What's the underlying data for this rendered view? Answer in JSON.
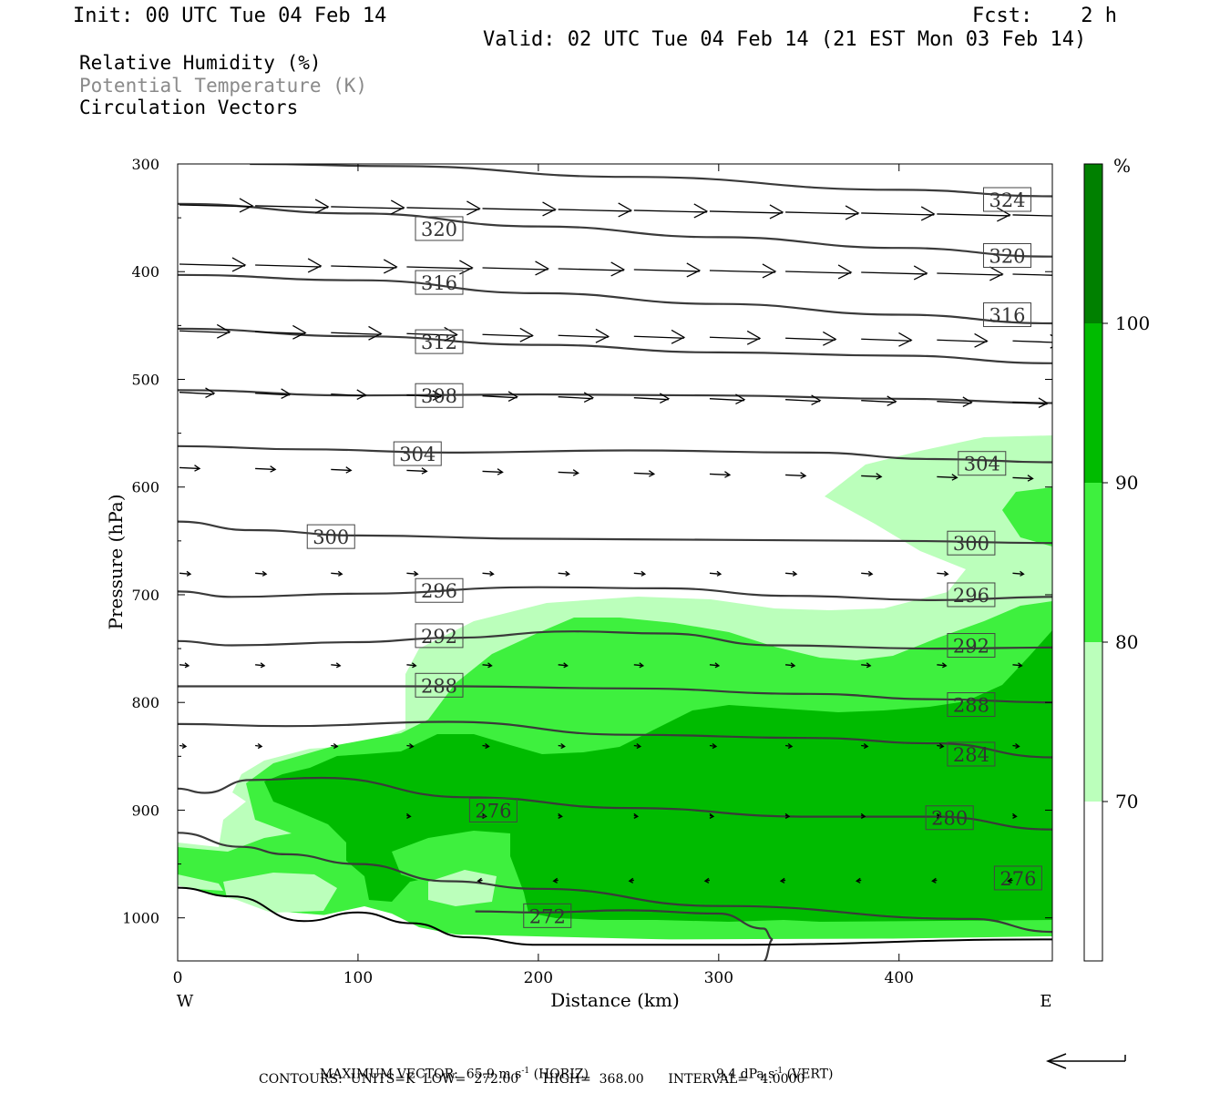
{
  "header": {
    "init": "Init: 00 UTC Tue 04 Feb 14",
    "fcst": "Fcst:    2 h",
    "valid": "Valid: 02 UTC Tue 04 Feb 14 (21 EST Mon 03 Feb 14)"
  },
  "legend_text": {
    "rh": "Relative Humidity (%)",
    "theta": "Potential Temperature (K)",
    "vectors": "Circulation Vectors"
  },
  "footer": {
    "max_vector_label": "MAXIMUM VECTOR:",
    "horiz_value": "65.9 m s",
    "horiz_exp": "-1",
    "horiz_tag": "(HORIZ)",
    "vert_value": "9.4 dPa s",
    "vert_exp": "-1",
    "vert_tag": "(VERT)",
    "contours": "CONTOURS:  UNITS=K  LOW=  272.00      HIGH=  368.00      INTERVAL=   4.0000"
  },
  "colors": {
    "rh_70_80": "#bbffbb",
    "rh_80_90": "#3ef03e",
    "rh_90_100": "#00bb00",
    "rh_100": "#008000",
    "theta_line": "#3a3a3a"
  },
  "chart_data": {
    "type": "cross-section",
    "xlabel": "Distance (km)",
    "ylabel": "Pressure (hPa)",
    "xlim": [
      0,
      485
    ],
    "ylim": [
      1040,
      300
    ],
    "x_ticks": [
      0,
      100,
      200,
      300,
      400
    ],
    "y_ticks": [
      300,
      400,
      500,
      600,
      700,
      800,
      900,
      1000
    ],
    "x_end_labels": {
      "left": "W",
      "right": "E"
    },
    "colorbar": {
      "unit": "%",
      "levels": [
        70,
        80,
        90,
        100
      ],
      "bins": [
        "<70",
        "70-80",
        "80-90",
        "90-100",
        ">100"
      ]
    },
    "theta_contours": [
      {
        "label": "324",
        "points": [
          [
            40,
            300
          ],
          [
            120,
            302
          ],
          [
            250,
            312
          ],
          [
            400,
            324
          ],
          [
            485,
            330
          ]
        ],
        "label_at": [
          460,
          333
        ]
      },
      {
        "label": "320",
        "points": [
          [
            0,
            337
          ],
          [
            100,
            346
          ],
          [
            200,
            358
          ],
          [
            300,
            368
          ],
          [
            400,
            378
          ],
          [
            485,
            386
          ]
        ],
        "label_at": [
          145,
          360
        ],
        "label2_at": [
          460,
          385
        ]
      },
      {
        "label": "316",
        "points": [
          [
            0,
            403
          ],
          [
            100,
            408
          ],
          [
            200,
            420
          ],
          [
            300,
            430
          ],
          [
            400,
            440
          ],
          [
            485,
            448
          ]
        ],
        "label_at": [
          145,
          410
        ],
        "label2_at": [
          460,
          440
        ]
      },
      {
        "label": "312",
        "points": [
          [
            0,
            453
          ],
          [
            100,
            460
          ],
          [
            200,
            468
          ],
          [
            300,
            475
          ],
          [
            400,
            478
          ],
          [
            485,
            485
          ]
        ],
        "label_at": [
          145,
          465
        ]
      },
      {
        "label": "308",
        "points": [
          [
            0,
            510
          ],
          [
            100,
            515
          ],
          [
            200,
            514
          ],
          [
            300,
            515
          ],
          [
            400,
            518
          ],
          [
            485,
            522
          ]
        ],
        "label_at": [
          145,
          515
        ]
      },
      {
        "label": "304",
        "points": [
          [
            0,
            562
          ],
          [
            70,
            565
          ],
          [
            150,
            568
          ],
          [
            250,
            566
          ],
          [
            350,
            568
          ],
          [
            420,
            574
          ],
          [
            485,
            577
          ]
        ],
        "label_at": [
          133,
          569
        ],
        "label2_at": [
          446,
          578
        ]
      },
      {
        "label": "300",
        "points": [
          [
            0,
            632
          ],
          [
            40,
            640
          ],
          [
            100,
            645
          ],
          [
            200,
            648
          ],
          [
            300,
            649
          ],
          [
            400,
            650
          ],
          [
            485,
            652
          ]
        ],
        "label_at": [
          85,
          646
        ],
        "label2_at": [
          440,
          652
        ]
      },
      {
        "label": "296",
        "points": [
          [
            0,
            697
          ],
          [
            30,
            702
          ],
          [
            100,
            699
          ],
          [
            200,
            693
          ],
          [
            270,
            694
          ],
          [
            340,
            701
          ],
          [
            420,
            705
          ],
          [
            485,
            702
          ]
        ],
        "label_at": [
          145,
          696
        ],
        "label2_at": [
          440,
          700
        ]
      },
      {
        "label": "292",
        "points": [
          [
            0,
            743
          ],
          [
            30,
            747
          ],
          [
            100,
            744
          ],
          [
            150,
            740
          ],
          [
            220,
            734
          ],
          [
            270,
            736
          ],
          [
            330,
            747
          ],
          [
            420,
            750
          ],
          [
            485,
            749
          ]
        ],
        "label_at": [
          145,
          738
        ],
        "label2_at": [
          440,
          747
        ]
      },
      {
        "label": "288",
        "points": [
          [
            0,
            785
          ],
          [
            50,
            785
          ],
          [
            150,
            785
          ],
          [
            250,
            787
          ],
          [
            350,
            792
          ],
          [
            420,
            797
          ],
          [
            485,
            800
          ]
        ],
        "label_at": [
          145,
          784
        ],
        "label2_at": [
          440,
          802
        ]
      },
      {
        "label": "284",
        "points": [
          [
            0,
            820
          ],
          [
            60,
            822
          ],
          [
            150,
            818
          ],
          [
            250,
            830
          ],
          [
            350,
            833
          ],
          [
            420,
            838
          ],
          [
            485,
            851
          ]
        ],
        "label_at": [
          440,
          848
        ]
      },
      {
        "label": "280",
        "points": [
          [
            0,
            880
          ],
          [
            15,
            884
          ],
          [
            40,
            872
          ],
          [
            80,
            870
          ],
          [
            160,
            888
          ],
          [
            250,
            898
          ],
          [
            350,
            906
          ],
          [
            420,
            906
          ],
          [
            485,
            918
          ]
        ],
        "label_at": [
          428,
          907
        ]
      },
      {
        "label": "276",
        "points": [
          [
            0,
            921
          ],
          [
            35,
            934
          ],
          [
            60,
            941
          ],
          [
            100,
            950
          ],
          [
            150,
            966
          ],
          [
            200,
            973
          ],
          [
            300,
            989
          ],
          [
            440,
            1001
          ],
          [
            485,
            1013
          ]
        ],
        "label_at": [
          175,
          900
        ],
        "label2_at": [
          466,
          963
        ]
      },
      {
        "label": "272",
        "points": [
          [
            165,
            994
          ],
          [
            200,
            995
          ],
          [
            250,
            993
          ],
          [
            300,
            996
          ],
          [
            325,
            1010
          ],
          [
            330,
            1020
          ],
          [
            325,
            1040
          ]
        ],
        "label_at": [
          205,
          998
        ]
      }
    ],
    "terrain": [
      [
        0,
        972
      ],
      [
        30,
        980
      ],
      [
        70,
        1003
      ],
      [
        100,
        995
      ],
      [
        130,
        1005
      ],
      [
        160,
        1018
      ],
      [
        200,
        1025
      ],
      [
        300,
        1025
      ],
      [
        485,
        1020
      ]
    ],
    "vectors_note": "horizontal circulation vectors, westerly aloft weakening toward the surface"
  }
}
